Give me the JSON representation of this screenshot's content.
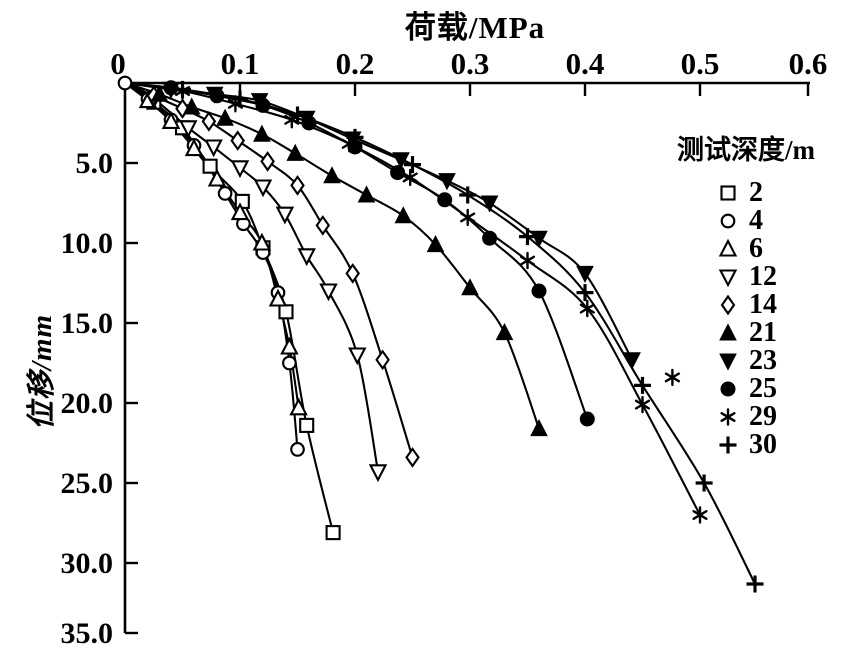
{
  "figure": {
    "background": "#ffffff",
    "foreground": "#000000"
  },
  "chart_data": {
    "type": "scatter",
    "title": "",
    "xlabel": "荷载/MPa",
    "ylabel": "位移/mm",
    "legend_title": "测试深度/m",
    "legend_position": "right",
    "grid": false,
    "x_axis": {
      "min": 0,
      "max": 0.6,
      "position": "top",
      "ticks": [
        0,
        0.1,
        0.2,
        0.3,
        0.4,
        0.5,
        0.6
      ],
      "tick_labels": [
        "0",
        "0.1",
        "0.2",
        "0.3",
        "0.4",
        "0.5",
        "0.6"
      ]
    },
    "y_axis": {
      "min": 0,
      "max": 35,
      "position": "left",
      "direction": "down",
      "ticks": [
        5,
        10,
        15,
        20,
        25,
        30,
        35
      ],
      "tick_labels": [
        "5.0",
        "10.0",
        "15.0",
        "20.0",
        "25.0",
        "30.0",
        "35.0"
      ]
    },
    "series": [
      {
        "name": "2",
        "marker": "square-open",
        "points": [
          [
            0.025,
            1.2
          ],
          [
            0.05,
            2.8
          ],
          [
            0.074,
            5.2
          ],
          [
            0.102,
            7.4
          ],
          [
            0.12,
            10.3
          ],
          [
            0.14,
            14.3
          ],
          [
            0.158,
            21.4
          ],
          [
            0.181,
            28.1
          ]
        ]
      },
      {
        "name": "4",
        "marker": "circle-open",
        "points": [
          [
            0.02,
            1.0
          ],
          [
            0.04,
            2.3
          ],
          [
            0.06,
            3.9
          ],
          [
            0.087,
            6.9
          ],
          [
            0.103,
            8.8
          ],
          [
            0.12,
            10.6
          ],
          [
            0.133,
            13.1
          ],
          [
            0.143,
            17.5
          ],
          [
            0.15,
            22.9
          ]
        ]
      },
      {
        "name": "6",
        "marker": "triangle-open",
        "points": [
          [
            0.02,
            1.1
          ],
          [
            0.04,
            2.4
          ],
          [
            0.06,
            4.1
          ],
          [
            0.08,
            6.0
          ],
          [
            0.1,
            8.1
          ],
          [
            0.119,
            10.0
          ],
          [
            0.133,
            13.5
          ],
          [
            0.143,
            16.5
          ],
          [
            0.151,
            20.3
          ]
        ]
      },
      {
        "name": "12",
        "marker": "triangle-down-open",
        "points": [
          [
            0.025,
            1.0
          ],
          [
            0.055,
            2.8
          ],
          [
            0.077,
            4.0
          ],
          [
            0.1,
            5.3
          ],
          [
            0.12,
            6.5
          ],
          [
            0.139,
            8.2
          ],
          [
            0.158,
            10.8
          ],
          [
            0.177,
            13.0
          ],
          [
            0.202,
            17.0
          ],
          [
            0.22,
            24.3
          ]
        ]
      },
      {
        "name": "14",
        "marker": "diamond-open",
        "points": [
          [
            0.025,
            0.8
          ],
          [
            0.05,
            1.6
          ],
          [
            0.073,
            2.4
          ],
          [
            0.098,
            3.6
          ],
          [
            0.124,
            4.9
          ],
          [
            0.15,
            6.4
          ],
          [
            0.172,
            8.9
          ],
          [
            0.198,
            11.9
          ],
          [
            0.224,
            17.3
          ],
          [
            0.25,
            23.4
          ]
        ]
      },
      {
        "name": "21",
        "marker": "triangle-filled",
        "points": [
          [
            0.03,
            0.7
          ],
          [
            0.058,
            1.5
          ],
          [
            0.087,
            2.2
          ],
          [
            0.119,
            3.2
          ],
          [
            0.148,
            4.4
          ],
          [
            0.18,
            5.8
          ],
          [
            0.21,
            7.0
          ],
          [
            0.242,
            8.3
          ],
          [
            0.27,
            10.1
          ],
          [
            0.3,
            12.8
          ],
          [
            0.33,
            15.6
          ],
          [
            0.36,
            21.6
          ]
        ]
      },
      {
        "name": "23",
        "marker": "triangle-down-filled",
        "points": [
          [
            0.04,
            0.4
          ],
          [
            0.078,
            0.7
          ],
          [
            0.117,
            1.1
          ],
          [
            0.158,
            2.2
          ],
          [
            0.198,
            3.5
          ],
          [
            0.24,
            4.8
          ],
          [
            0.28,
            6.1
          ],
          [
            0.317,
            7.5
          ],
          [
            0.36,
            9.7
          ],
          [
            0.4,
            11.9
          ],
          [
            0.441,
            17.3
          ]
        ]
      },
      {
        "name": "25",
        "marker": "circle-filled",
        "points": [
          [
            0.04,
            0.3
          ],
          [
            0.08,
            0.8
          ],
          [
            0.12,
            1.4
          ],
          [
            0.16,
            2.5
          ],
          [
            0.2,
            4.0
          ],
          [
            0.237,
            5.6
          ],
          [
            0.278,
            7.3
          ],
          [
            0.317,
            9.7
          ],
          [
            0.36,
            13.0
          ],
          [
            0.402,
            21.0
          ]
        ]
      },
      {
        "name": "29",
        "marker": "asterisk",
        "points": [
          [
            0.05,
            0.5
          ],
          [
            0.096,
            1.3
          ],
          [
            0.145,
            2.3
          ],
          [
            0.195,
            3.8
          ],
          [
            0.248,
            5.9
          ],
          [
            0.298,
            8.4
          ],
          [
            0.35,
            11.1
          ],
          [
            0.402,
            14.1
          ],
          [
            0.45,
            20.1
          ],
          [
            0.5,
            27.0
          ]
        ]
      },
      {
        "name": "30",
        "marker": "plus",
        "points": [
          [
            0.05,
            0.4
          ],
          [
            0.1,
            1.0
          ],
          [
            0.15,
            2.0
          ],
          [
            0.2,
            3.4
          ],
          [
            0.25,
            5.1
          ],
          [
            0.298,
            7.0
          ],
          [
            0.35,
            9.6
          ],
          [
            0.4,
            13.1
          ],
          [
            0.45,
            18.9
          ],
          [
            0.502,
            25.0
          ],
          [
            0.55,
            31.5
          ]
        ]
      }
    ],
    "extra_markers": [
      {
        "series": "29",
        "marker": "asterisk",
        "point": [
          0.476,
          18.4
        ]
      }
    ],
    "origin_marker": {
      "marker": "circle-open",
      "point": [
        0,
        0
      ]
    }
  }
}
